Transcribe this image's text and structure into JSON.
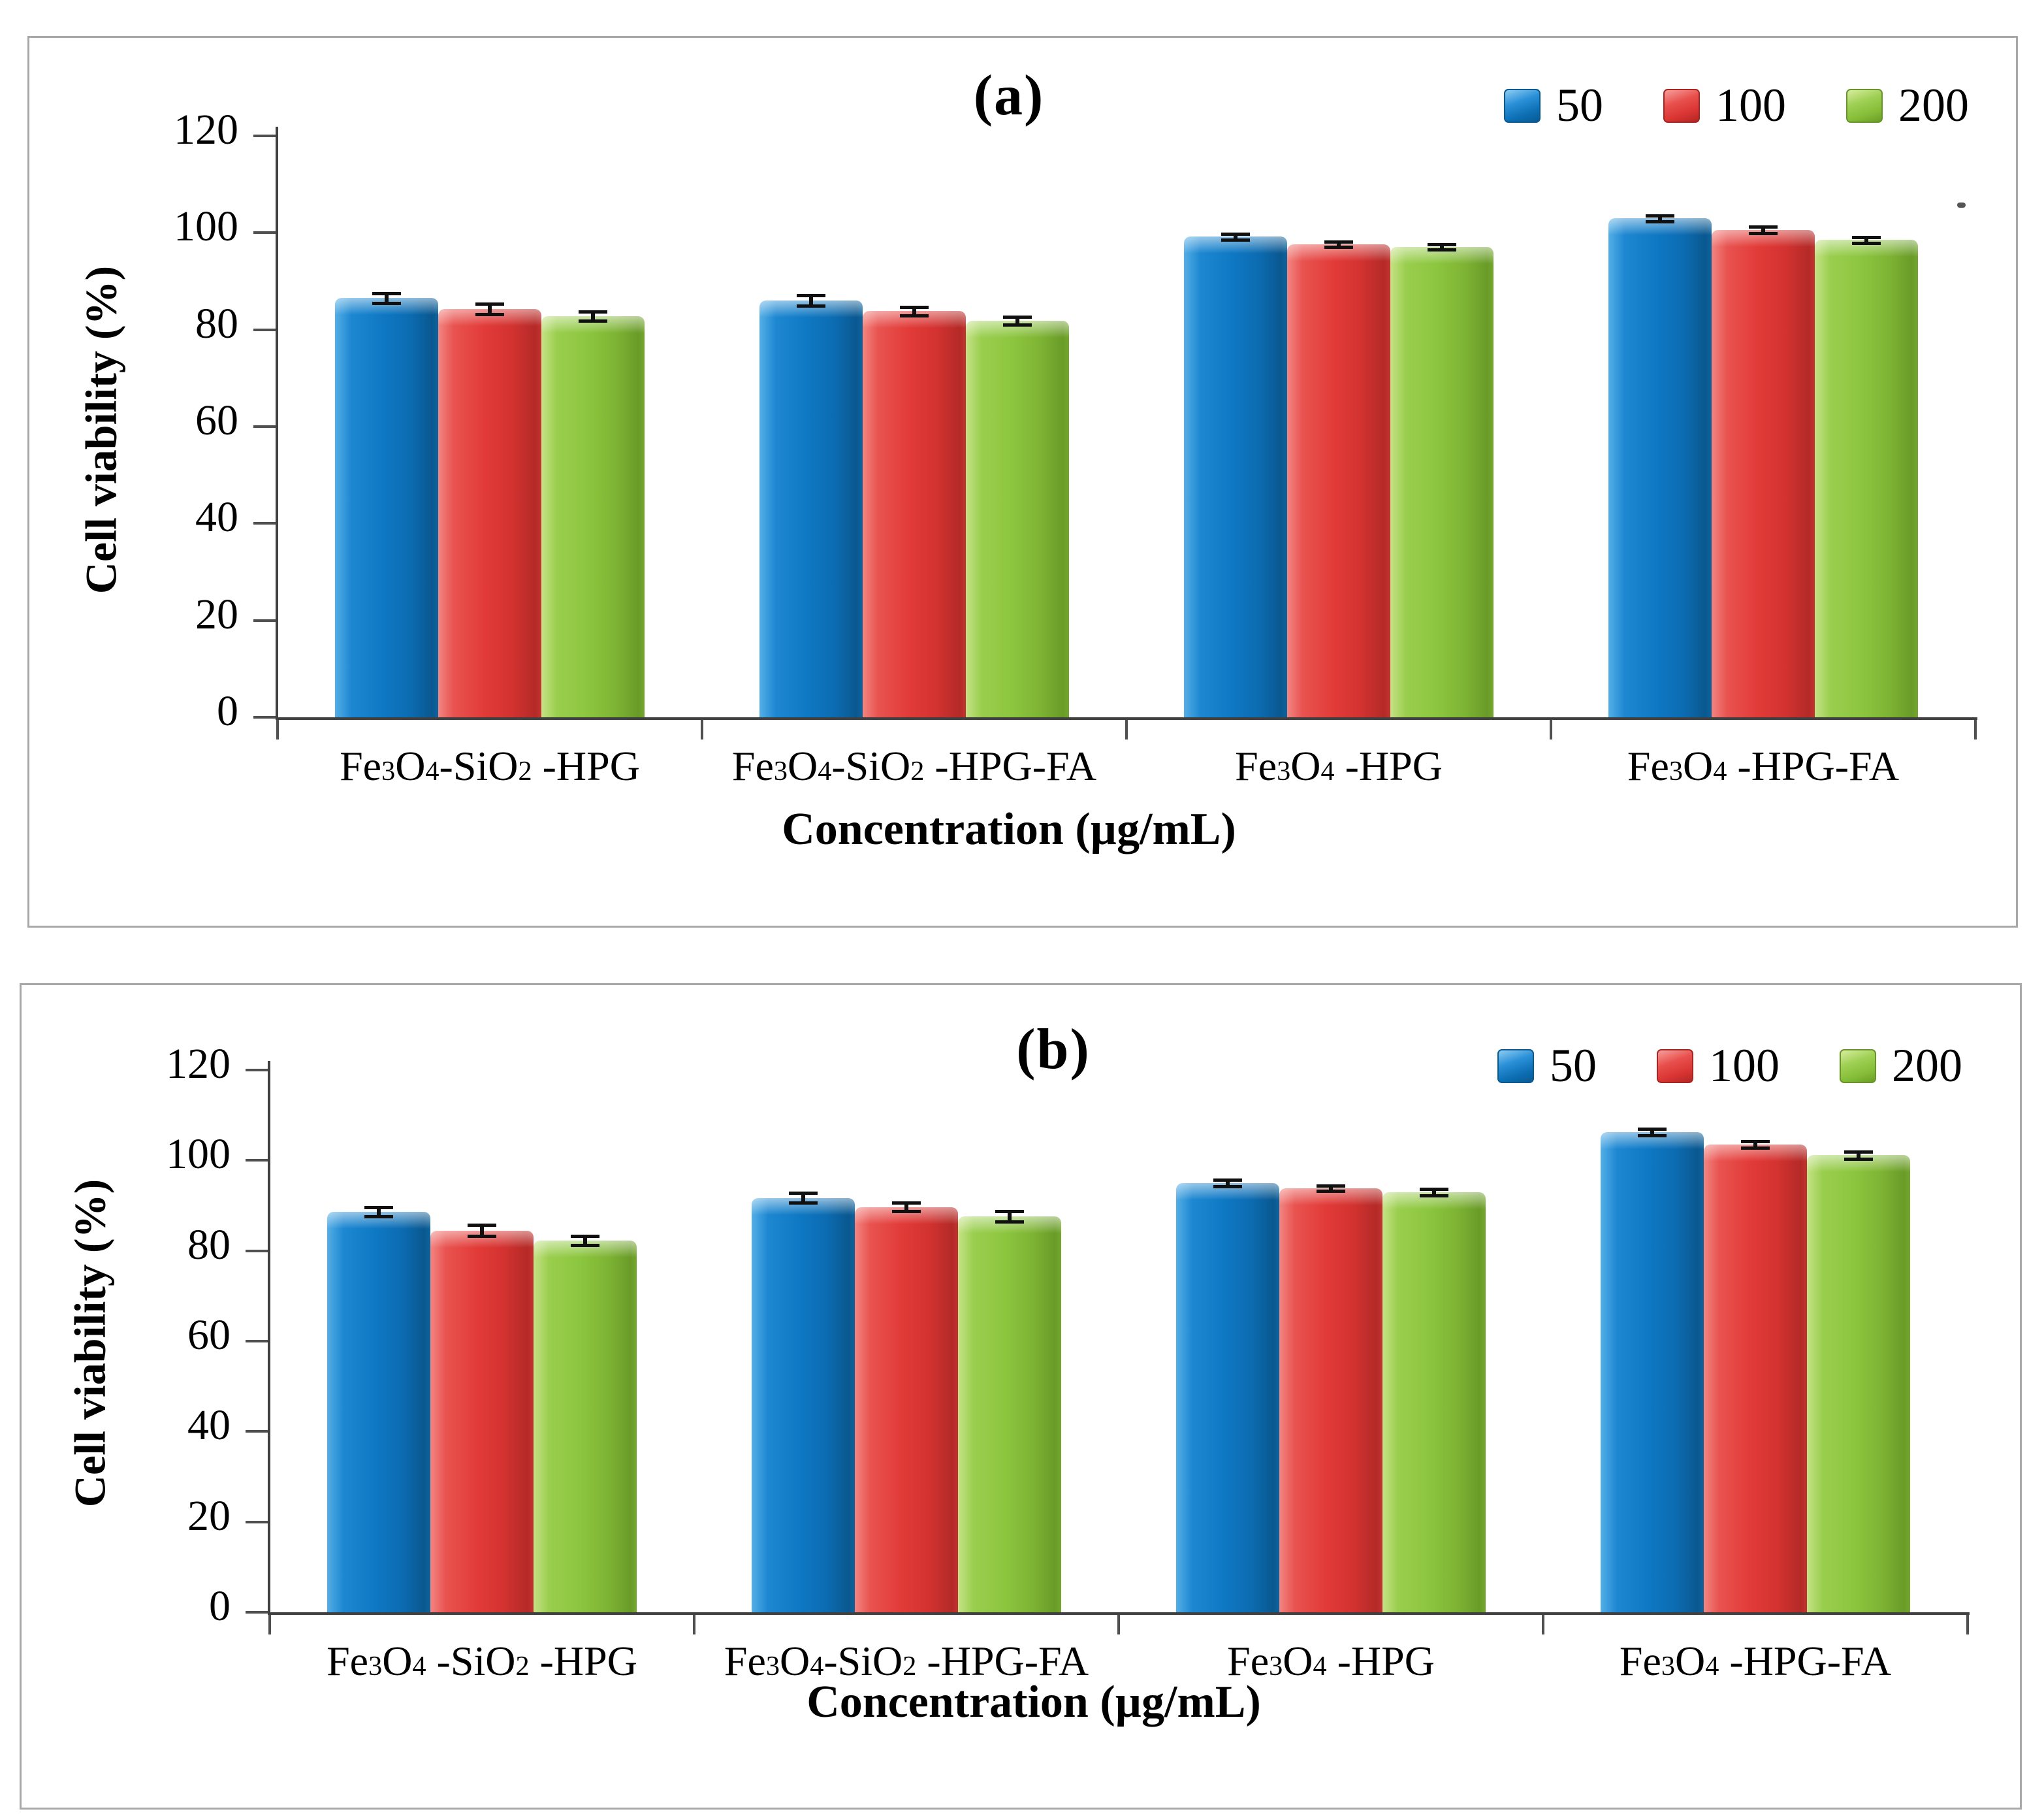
{
  "figure": {
    "background": "#ffffff",
    "panel_border_color": "#a8a8a8",
    "axis_color": "#404040",
    "error_bar_color": "#101010"
  },
  "chart_data": [
    {
      "type": "bar",
      "title": "(a)",
      "ylabel": "Cell viability  (%)",
      "xlabel": "Concentration (µg/mL)",
      "ylim": [
        0,
        120
      ],
      "yticks": [
        0,
        20,
        40,
        60,
        80,
        100,
        120
      ],
      "grid": false,
      "legend_position": "top-right",
      "legend": [
        "50",
        "100",
        "200"
      ],
      "categories": [
        "Fe₃O₄-SiO₂ -HPG",
        "Fe₃O₄-SiO₂ -HPG-FA",
        "Fe₃O₄ -HPG",
        "Fe₃O₄ -HPG-FA"
      ],
      "series": [
        {
          "name": "50",
          "color": "#1079C4",
          "values": [
            86.5,
            86.0,
            99.2,
            103.0
          ],
          "errors": [
            1.0,
            1.1,
            0.6,
            0.6
          ]
        },
        {
          "name": "100",
          "color": "#E23B38",
          "values": [
            84.3,
            83.8,
            97.6,
            100.6
          ],
          "errors": [
            1.1,
            0.9,
            0.5,
            0.7
          ]
        },
        {
          "name": "200",
          "color": "#8CC63F",
          "values": [
            82.8,
            81.8,
            97.1,
            98.5
          ],
          "errors": [
            0.9,
            0.8,
            0.5,
            0.6
          ]
        }
      ]
    },
    {
      "type": "bar",
      "title": "(b)",
      "ylabel": "Cell viability (%)",
      "xlabel": "Concentration  (µg/mL)",
      "ylim": [
        0,
        120
      ],
      "yticks": [
        0,
        20,
        40,
        60,
        80,
        100,
        120
      ],
      "grid": false,
      "legend_position": "top-right",
      "legend": [
        "50",
        "100",
        "200"
      ],
      "categories": [
        "Fe₃O₄ -SiO₂ -HPG",
        "Fe₃O₄-SiO₂ -HPG-FA",
        "Fe₃O₄ -HPG",
        "Fe₃O₄ -HPG-FA"
      ],
      "series": [
        {
          "name": "50",
          "color": "#1079C4",
          "values": [
            88.6,
            91.7,
            95.0,
            106.3
          ],
          "errors": [
            1.0,
            1.1,
            0.7,
            0.7
          ]
        },
        {
          "name": "100",
          "color": "#E23B38",
          "values": [
            84.5,
            89.7,
            93.8,
            103.5
          ],
          "errors": [
            1.2,
            1.0,
            0.6,
            0.7
          ]
        },
        {
          "name": "200",
          "color": "#8CC63F",
          "values": [
            82.3,
            87.6,
            93.0,
            101.2
          ],
          "errors": [
            1.0,
            1.2,
            0.7,
            0.8
          ]
        }
      ]
    }
  ]
}
